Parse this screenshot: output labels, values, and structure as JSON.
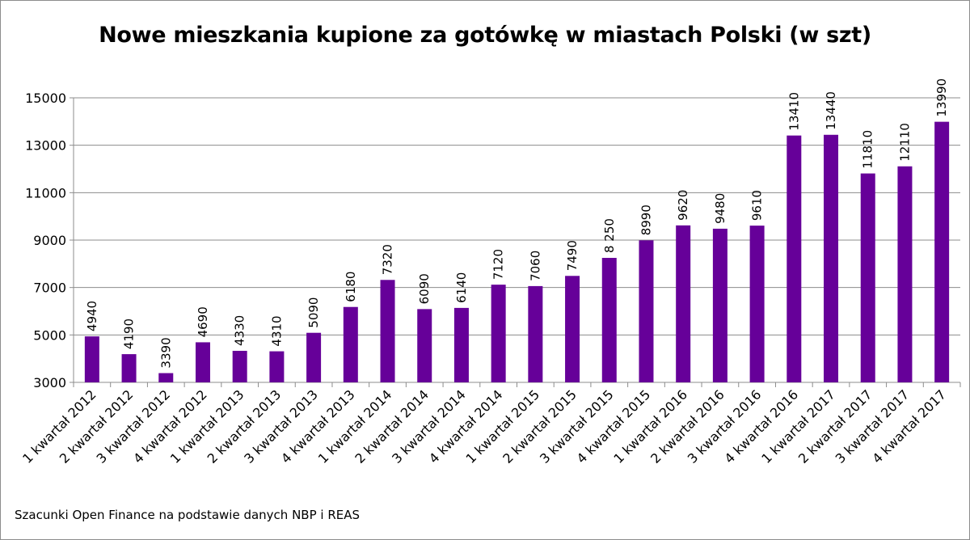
{
  "chart_data": {
    "type": "bar",
    "title": "Nowe mieszkania kupione za gotówkę w miastach Polski (w szt)",
    "xlabel": "",
    "ylabel": "",
    "ylim": [
      3000,
      15000
    ],
    "yticks": [
      3000,
      5000,
      7000,
      9000,
      11000,
      13000,
      15000
    ],
    "grid": true,
    "bar_color": "#660099",
    "categories": [
      "1 kwartał 2012",
      "2 kwartał 2012",
      "3 kwartał 2012",
      "4 kwartał 2012",
      "1 kwartał 2013",
      "2 kwartał 2013",
      "3 kwartał 2013",
      "4 kwartał 2013",
      "1 kwartał 2014",
      "2 kwartał 2014",
      "3 kwartał 2014",
      "4 kwartał 2014",
      "1 kwartał 2015",
      "2 kwartał 2015",
      "3 kwartał 2015",
      "4 kwartał 2015",
      "1 kwartał 2016",
      "2 kwartał 2016",
      "3 kwartał 2016",
      "4 kwartał 2016",
      "1 kwartał 2017",
      "2 kwartał 2017",
      "3 kwartał 2017",
      "4 kwartał 2017"
    ],
    "values": [
      4940,
      4190,
      3390,
      4690,
      4330,
      4310,
      5090,
      6180,
      7320,
      6090,
      6140,
      7120,
      7060,
      7490,
      8250,
      8990,
      9620,
      9480,
      9610,
      13410,
      13440,
      11810,
      12110,
      13990
    ],
    "data_labels": [
      "4940",
      "4190",
      "3390",
      "4690",
      "4330",
      "4310",
      "5090",
      "6180",
      "7320",
      "6090",
      "6140",
      "7120",
      "7060",
      "7490",
      "8 250",
      "8990",
      "9620",
      "9480",
      "9610",
      "13410",
      "13440",
      "11810",
      "12110",
      "13990"
    ],
    "footnote": "Szacunki Open Finance na podstawie danych NBP i REAS"
  }
}
